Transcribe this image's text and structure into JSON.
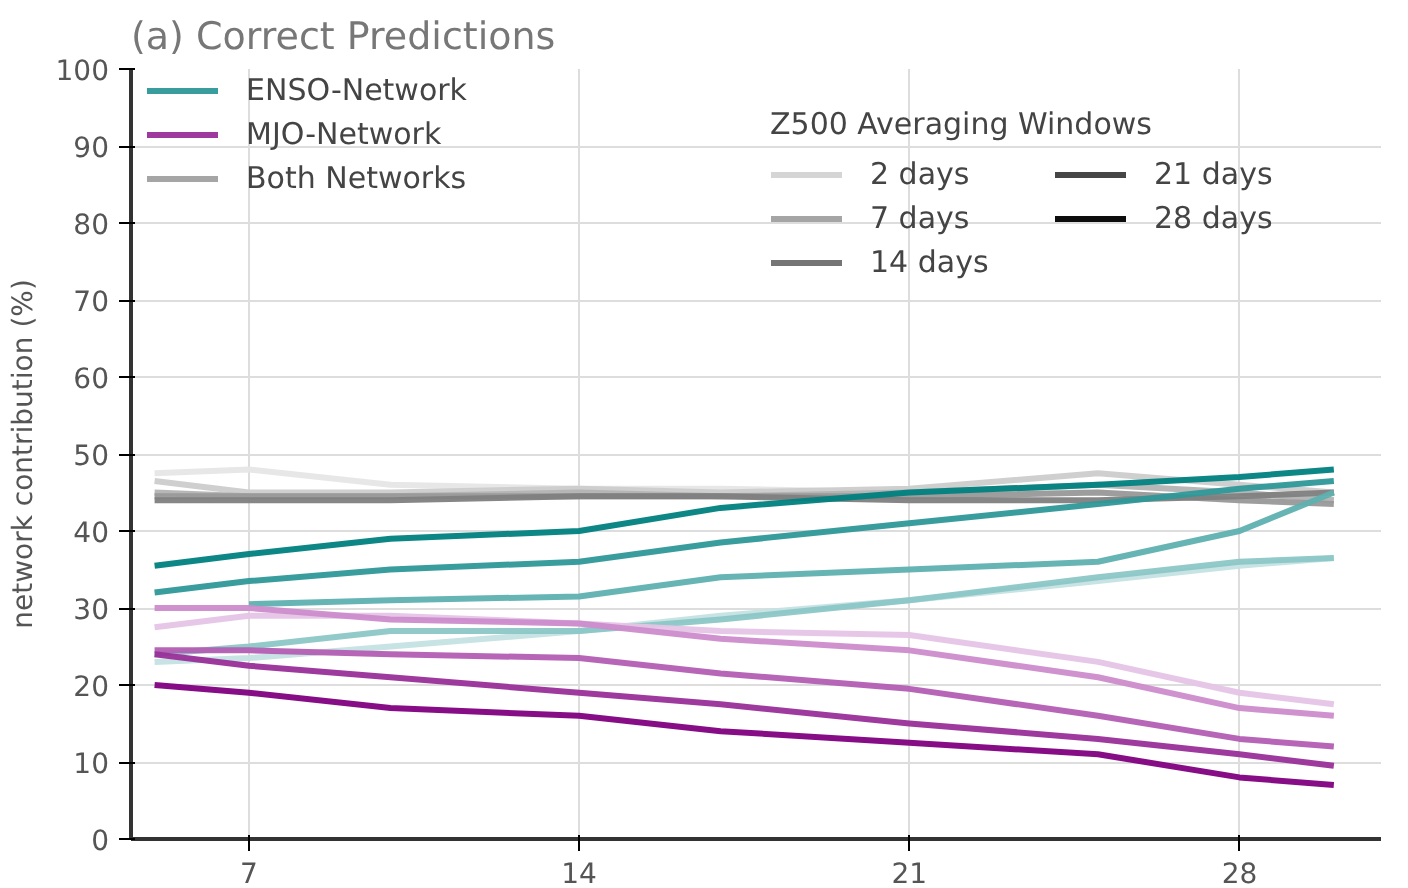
{
  "chart_data": {
    "type": "line",
    "title": "(a) Correct Predictions",
    "ylabel": "network contribution (%)",
    "legend_title": "Z500 Averaging Windows",
    "x": [
      5,
      7,
      10,
      14,
      17,
      21,
      25,
      28,
      30
    ],
    "xlim": [
      4.5,
      31
    ],
    "xticks": [
      7,
      14,
      21,
      28
    ],
    "ylim": [
      0,
      100
    ],
    "yticks": [
      0,
      10,
      20,
      30,
      40,
      50,
      60,
      70,
      80,
      90,
      100
    ],
    "grid": true,
    "legend": "top",
    "line_style": "solid",
    "marker": "none",
    "series": [
      {
        "color": "#e6e6e6",
        "values": [
          47.5,
          48,
          46,
          45.5,
          45.5,
          45,
          45,
          44,
          44
        ]
      },
      {
        "color": "#cccccc",
        "values": [
          46.5,
          45,
          45,
          45.5,
          45,
          45.5,
          47.5,
          46,
          45
        ]
      },
      {
        "color": "#b3b3b3",
        "values": [
          45,
          44.5,
          44.5,
          45,
          44.5,
          45,
          46,
          45,
          44
        ]
      },
      {
        "color": "#999999",
        "values": [
          44.5,
          44.5,
          44.5,
          44.5,
          44.5,
          44.5,
          45,
          44,
          43.5
        ]
      },
      {
        "color": "#808080",
        "values": [
          44,
          44,
          44,
          44.5,
          44.5,
          44,
          44,
          44.5,
          45
        ]
      },
      {
        "color": "#c4e2e2",
        "values": [
          23,
          23.5,
          25,
          27,
          29,
          31,
          33.5,
          35.5,
          36.5
        ]
      },
      {
        "color": "#8cc6c6",
        "values": [
          24,
          25,
          27,
          27,
          28.5,
          31,
          34,
          36,
          36.5
        ]
      },
      {
        "color": "#5eb0b0",
        "values": [
          null,
          30.5,
          31,
          31.5,
          34,
          35,
          36,
          40,
          45
        ]
      },
      {
        "color": "#2f9898",
        "values": [
          32,
          33.5,
          35,
          36,
          38.5,
          41,
          43.5,
          45.5,
          46.5
        ]
      },
      {
        "color": "#008080",
        "values": [
          35.5,
          37,
          39,
          40,
          43,
          45,
          46,
          47,
          48
        ]
      },
      {
        "color": "#e6c4e6",
        "values": [
          27.5,
          29,
          29,
          28,
          27,
          26.5,
          23,
          19,
          17.5
        ]
      },
      {
        "color": "#cc8ccc",
        "values": [
          30,
          30,
          28.5,
          28,
          26,
          24.5,
          21,
          17,
          16
        ]
      },
      {
        "color": "#b35eb3",
        "values": [
          24.5,
          24.5,
          24,
          23.5,
          21.5,
          19.5,
          16,
          13,
          12
        ]
      },
      {
        "color": "#992f99",
        "values": [
          24,
          22.5,
          21,
          19,
          17.5,
          15,
          13,
          11,
          9.5
        ]
      },
      {
        "color": "#800080",
        "values": [
          20,
          19,
          17,
          16,
          14,
          12.5,
          11,
          8,
          7
        ]
      },
      {
        "name": "ENSO-Network",
        "color": "#2f9898",
        "values": [
          null,
          null,
          null,
          null,
          null,
          null,
          null,
          null,
          null
        ]
      },
      {
        "name": "MJO-Network",
        "color": "#992f99",
        "values": [
          null,
          null,
          null,
          null,
          null,
          null,
          null,
          null,
          null
        ]
      },
      {
        "name": "Both Networks",
        "color": "#a0a0a0",
        "values": [
          null,
          null,
          null,
          null,
          null,
          null,
          null,
          null,
          null
        ]
      },
      {
        "name": "2 days",
        "color": "#d3d3d3",
        "values": [
          null,
          null,
          null,
          null,
          null,
          null,
          null,
          null,
          null
        ]
      },
      {
        "name": "7 days",
        "color": "#a0a0a0",
        "values": [
          null,
          null,
          null,
          null,
          null,
          null,
          null,
          null,
          null
        ]
      },
      {
        "name": "14 days",
        "color": "#6e6e6e",
        "values": [
          null,
          null,
          null,
          null,
          null,
          null,
          null,
          null,
          null
        ]
      },
      {
        "name": "21 days",
        "color": "#3c3c3c",
        "values": [
          null,
          null,
          null,
          null,
          null,
          null,
          null,
          null,
          null
        ]
      },
      {
        "name": "28 days",
        "color": "#000000",
        "values": [
          null,
          null,
          null,
          null,
          null,
          null,
          null,
          null,
          null
        ]
      }
    ]
  }
}
